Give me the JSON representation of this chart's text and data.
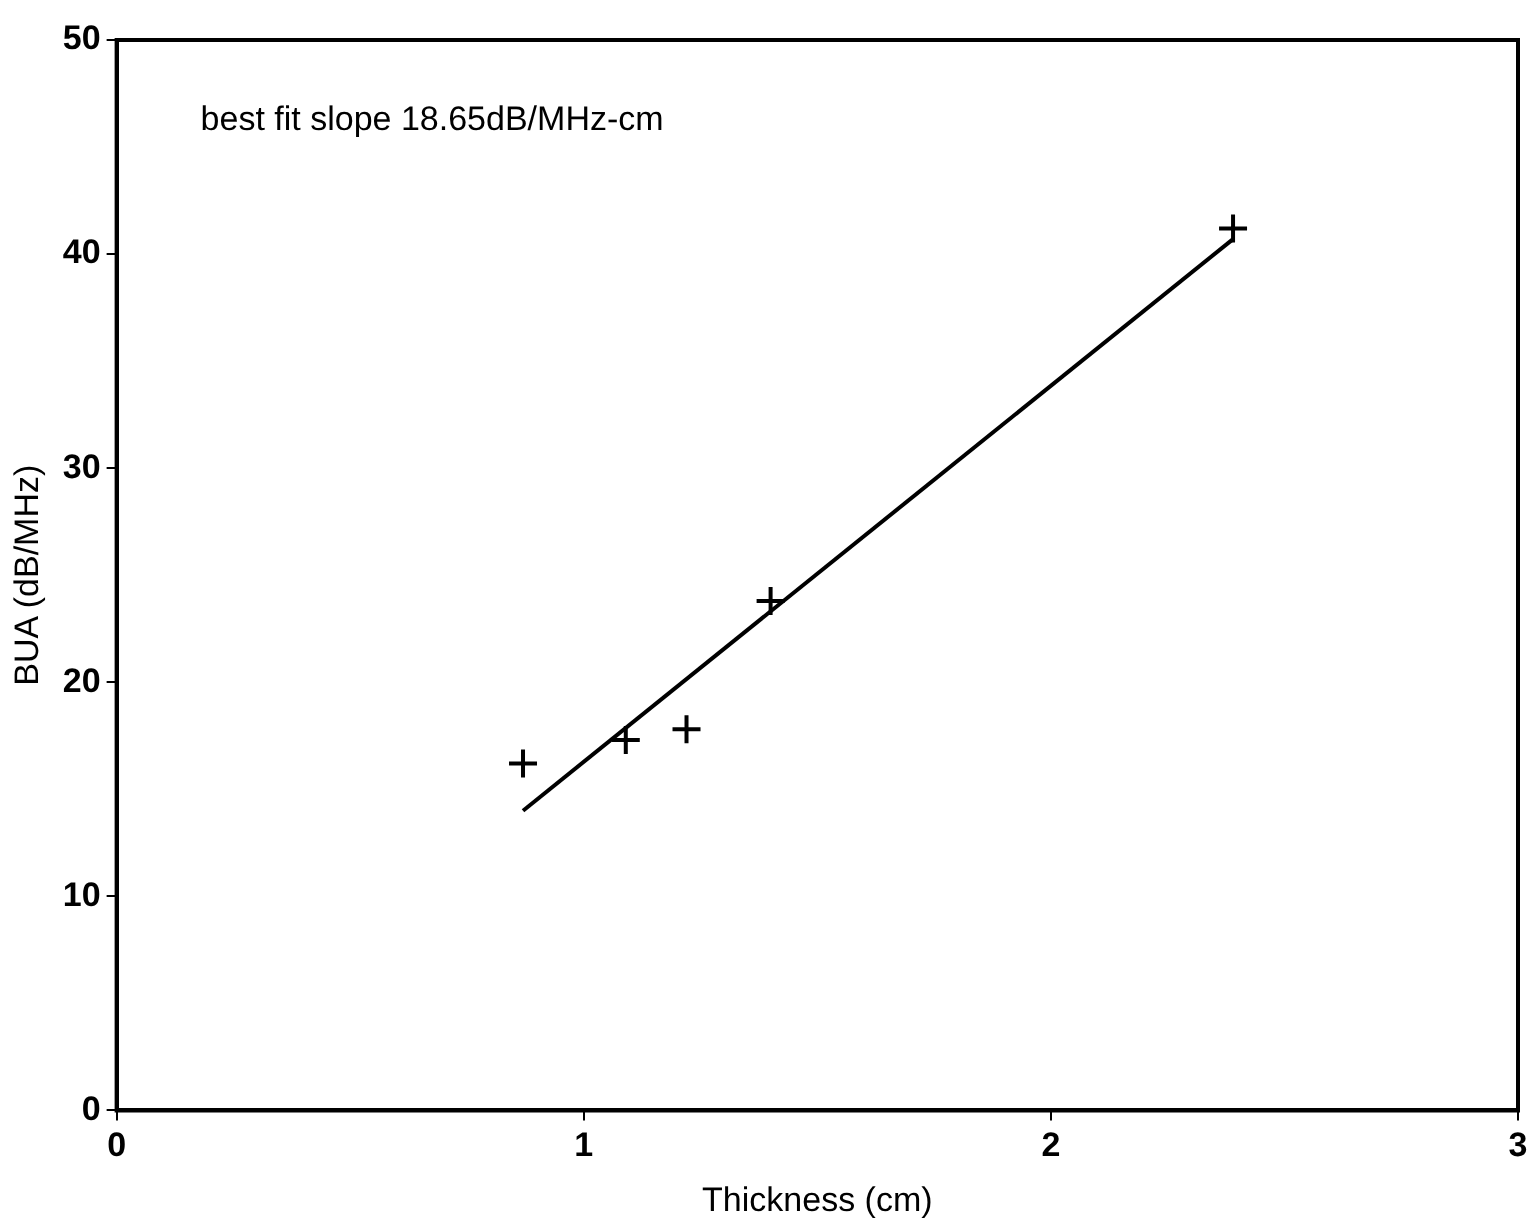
{
  "chart_data": {
    "type": "scatter",
    "xlabel": "Thickness (cm)",
    "ylabel": "BUA (dB/MHz)",
    "annotations": [
      "best fit slope 18.65dB/MHz-cm"
    ],
    "xlim": [
      0,
      3
    ],
    "xticks": [
      0,
      1,
      2,
      3
    ],
    "ylim": [
      0,
      50
    ],
    "yticks": [
      0,
      10,
      20,
      30,
      40,
      50
    ],
    "grid": false,
    "legend": false,
    "series": [
      {
        "marker": "cross",
        "color": "#000000",
        "x": [
          0.87,
          1.09,
          1.22,
          1.4,
          2.39
        ],
        "values": [
          16.2,
          17.3,
          17.8,
          23.8,
          41.2
        ]
      },
      {
        "type": "line",
        "marker": "none",
        "line_style": "solid",
        "color": "#000000",
        "x": [
          0.87,
          2.39
        ],
        "values": [
          14.0,
          40.7
        ]
      }
    ]
  }
}
